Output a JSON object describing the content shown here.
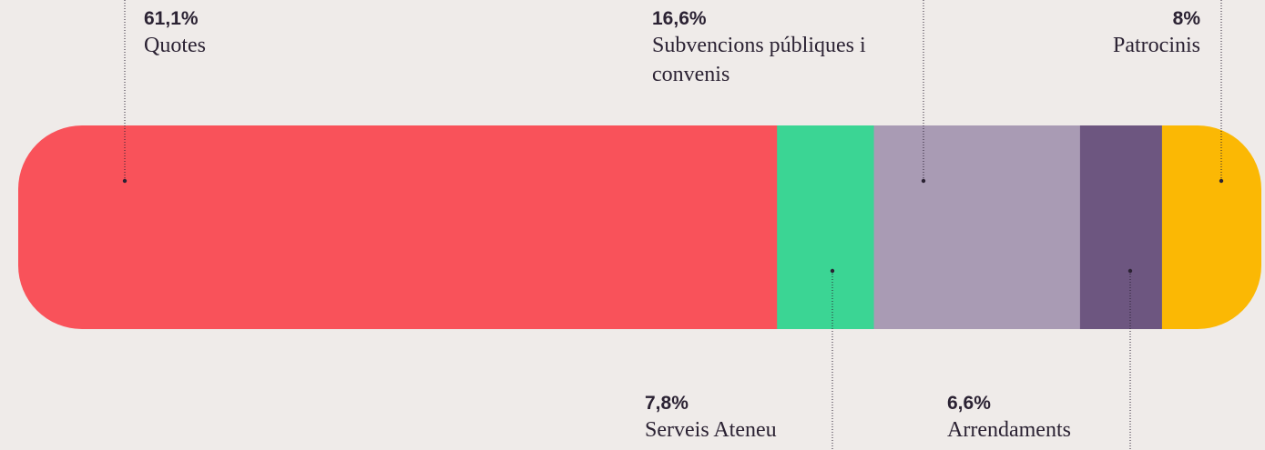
{
  "chart_data": {
    "type": "stacked-bar",
    "series": [
      {
        "name": "Quotes",
        "color": "#f9525a",
        "values": [
          61.1
        ],
        "value_labels": [
          "61,1%"
        ]
      },
      {
        "name": "Serveis Ateneu",
        "color": "#3bd594",
        "values": [
          7.8
        ],
        "value_labels": [
          "7,8%"
        ]
      },
      {
        "name": "Subvencions públiques i convenis",
        "color": "#a99bb4",
        "values": [
          16.6
        ],
        "value_labels": [
          "16,6%"
        ]
      },
      {
        "name": "Arrendaments",
        "color": "#6d5680",
        "values": [
          6.6
        ],
        "value_labels": [
          "6,6%"
        ]
      },
      {
        "name": "Patrocinis",
        "color": "#fbb804",
        "values": [
          8
        ],
        "value_labels": [
          "8%"
        ]
      }
    ]
  }
}
